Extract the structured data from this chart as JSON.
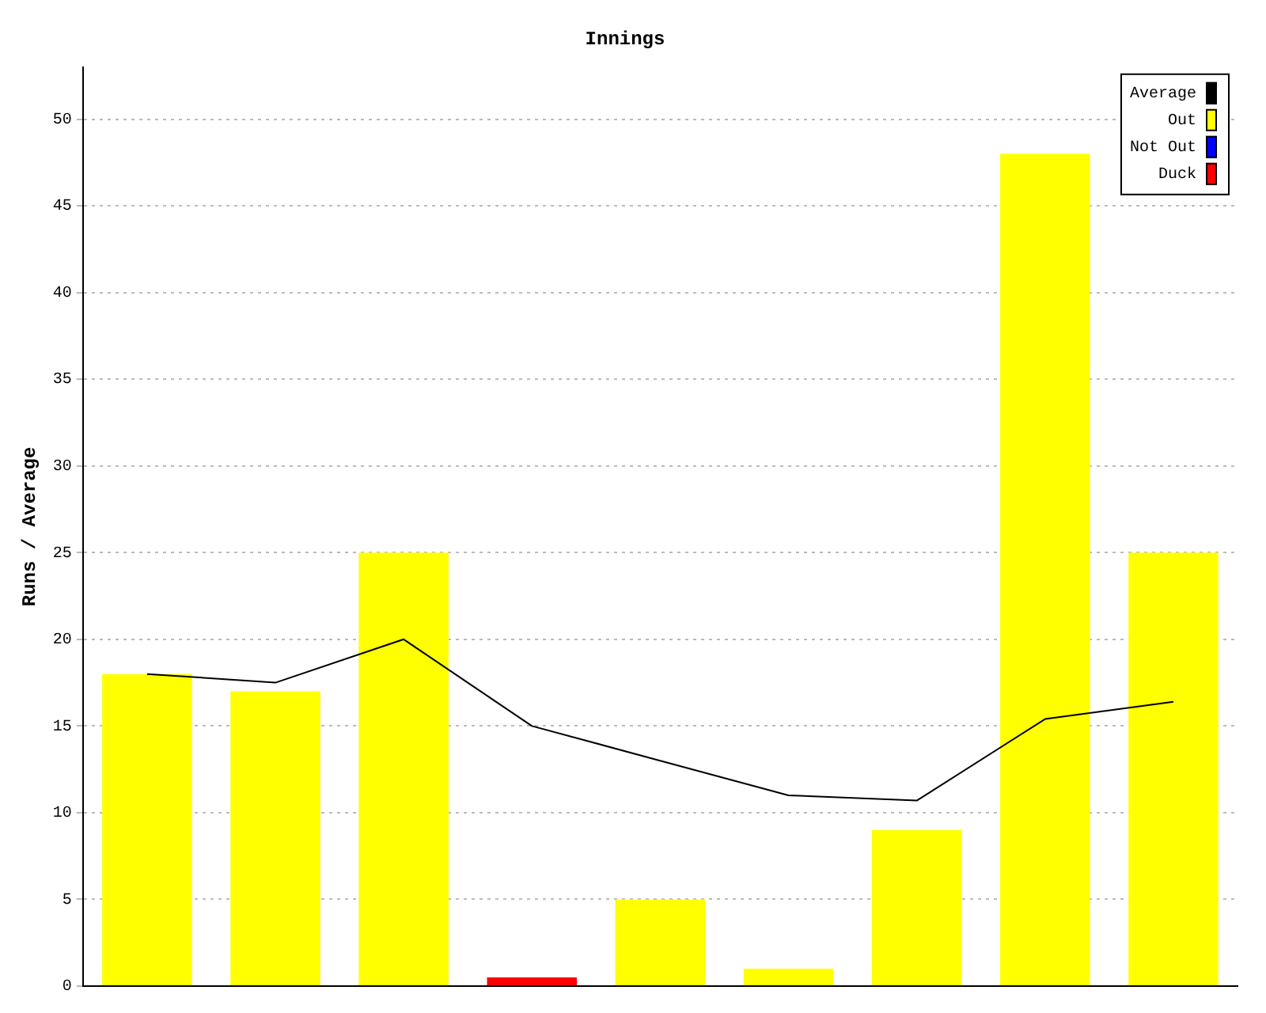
{
  "chart_data": {
    "type": "bar",
    "title": "Innings",
    "ylabel": "Runs / Average",
    "categories": [
      null,
      null,
      null,
      null,
      null,
      null,
      null,
      null,
      null
    ],
    "series": [
      {
        "name": "Average",
        "type": "line",
        "color": "#000000",
        "values": [
          18,
          17.5,
          20,
          15,
          13,
          11,
          10.7,
          15.4,
          16.4
        ]
      },
      {
        "name": "Out",
        "color": "#ffff00",
        "values": [
          18,
          17,
          25,
          null,
          5,
          1,
          9,
          48,
          25
        ]
      },
      {
        "name": "Not Out",
        "color": "#0000ff",
        "values": [
          null,
          null,
          null,
          null,
          null,
          null,
          null,
          null,
          null
        ]
      },
      {
        "name": "Duck",
        "color": "#ff0000",
        "values": [
          null,
          null,
          null,
          0.5,
          null,
          null,
          null,
          null,
          null
        ]
      }
    ],
    "stacked": true,
    "ylim": [
      0,
      53
    ],
    "yticks": [
      0,
      5,
      10,
      15,
      20,
      25,
      30,
      35,
      40,
      45,
      50
    ],
    "grid": "y",
    "legend": "top right",
    "tick_labels": "y",
    "marker": "none",
    "line_style": "solid"
  }
}
